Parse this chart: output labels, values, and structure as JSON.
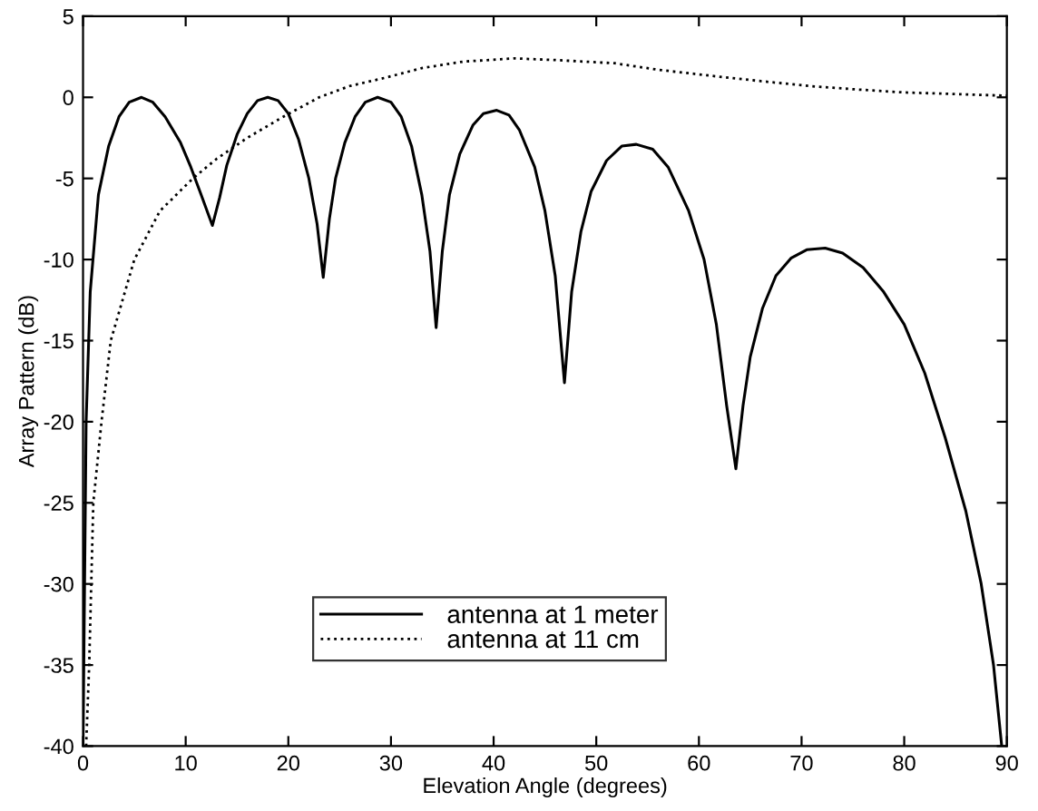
{
  "chart_data": {
    "type": "line",
    "xlabel": "Elevation Angle (degrees)",
    "ylabel": "Array Pattern (dB)",
    "xlim": [
      0,
      90
    ],
    "ylim": [
      -40,
      5
    ],
    "xticks": [
      0,
      10,
      20,
      30,
      40,
      50,
      60,
      70,
      80,
      90
    ],
    "yticks": [
      -40,
      -35,
      -30,
      -25,
      -20,
      -15,
      -10,
      -5,
      0,
      5
    ],
    "grid": false,
    "legend": "bottom",
    "marker": "none",
    "series": [
      {
        "name": "antenna at 1 meter",
        "color": "#000000",
        "line_style": "solid",
        "x": [
          0,
          0.3,
          0.7,
          1.5,
          2.5,
          3.5,
          4.5,
          5.7,
          6.8,
          8,
          9.5,
          10.5,
          11.5,
          12.6,
          13.3,
          14,
          15,
          16,
          17,
          18,
          19,
          20,
          21,
          22,
          22.8,
          23.4,
          24,
          24.6,
          25.5,
          26.5,
          27.5,
          28.7,
          30,
          31,
          32,
          33,
          33.8,
          34.4,
          35,
          35.7,
          36.7,
          38,
          39,
          40.3,
          41.5,
          42.5,
          44,
          45,
          46,
          46.9,
          47.6,
          48.5,
          49.5,
          51,
          52.5,
          53.9,
          55.5,
          57,
          59,
          60.5,
          61.7,
          62.7,
          63.6,
          64.3,
          65,
          66.2,
          67.5,
          69,
          70.5,
          72.3,
          74,
          76,
          78,
          80,
          82,
          84,
          86,
          87.5,
          88.7,
          89.5
        ],
        "values": [
          -40,
          -20,
          -12,
          -6,
          -3,
          -1.2,
          -0.3,
          0,
          -0.3,
          -1.2,
          -2.8,
          -4.3,
          -6,
          -7.9,
          -6.2,
          -4.2,
          -2.3,
          -1,
          -0.2,
          0,
          -0.2,
          -1,
          -2.6,
          -5,
          -7.8,
          -11.1,
          -7.5,
          -5,
          -2.8,
          -1.2,
          -0.3,
          0,
          -0.3,
          -1.2,
          -3,
          -6,
          -9.5,
          -14.2,
          -9.5,
          -6,
          -3.5,
          -1.7,
          -1,
          -0.8,
          -1.1,
          -2,
          -4.3,
          -7,
          -11,
          -17.6,
          -12,
          -8.3,
          -5.8,
          -3.9,
          -3,
          -2.9,
          -3.2,
          -4.3,
          -7,
          -10,
          -14,
          -19,
          -22.9,
          -19,
          -16,
          -13,
          -11,
          -9.9,
          -9.4,
          -9.3,
          -9.6,
          -10.5,
          -12,
          -14,
          -17,
          -21,
          -25.5,
          -30,
          -35,
          -40
        ]
      },
      {
        "name": "antenna at 11 cm",
        "color": "#000000",
        "line_style": "dotted",
        "x": [
          0.3,
          0.6,
          1,
          1.8,
          2.7,
          5,
          7.5,
          10.7,
          13,
          16,
          19.5,
          23,
          26,
          29.4,
          33,
          37,
          42,
          46,
          51.8,
          56,
          61.6,
          66,
          70.7,
          75,
          80,
          85,
          90
        ],
        "values": [
          -40,
          -35,
          -25,
          -20,
          -15,
          -10,
          -7,
          -5,
          -3.8,
          -2.5,
          -1.2,
          0,
          0.7,
          1.2,
          1.8,
          2.2,
          2.4,
          2.3,
          2.1,
          1.7,
          1.3,
          1.0,
          0.7,
          0.5,
          0.3,
          0.2,
          0.1
        ]
      }
    ]
  }
}
